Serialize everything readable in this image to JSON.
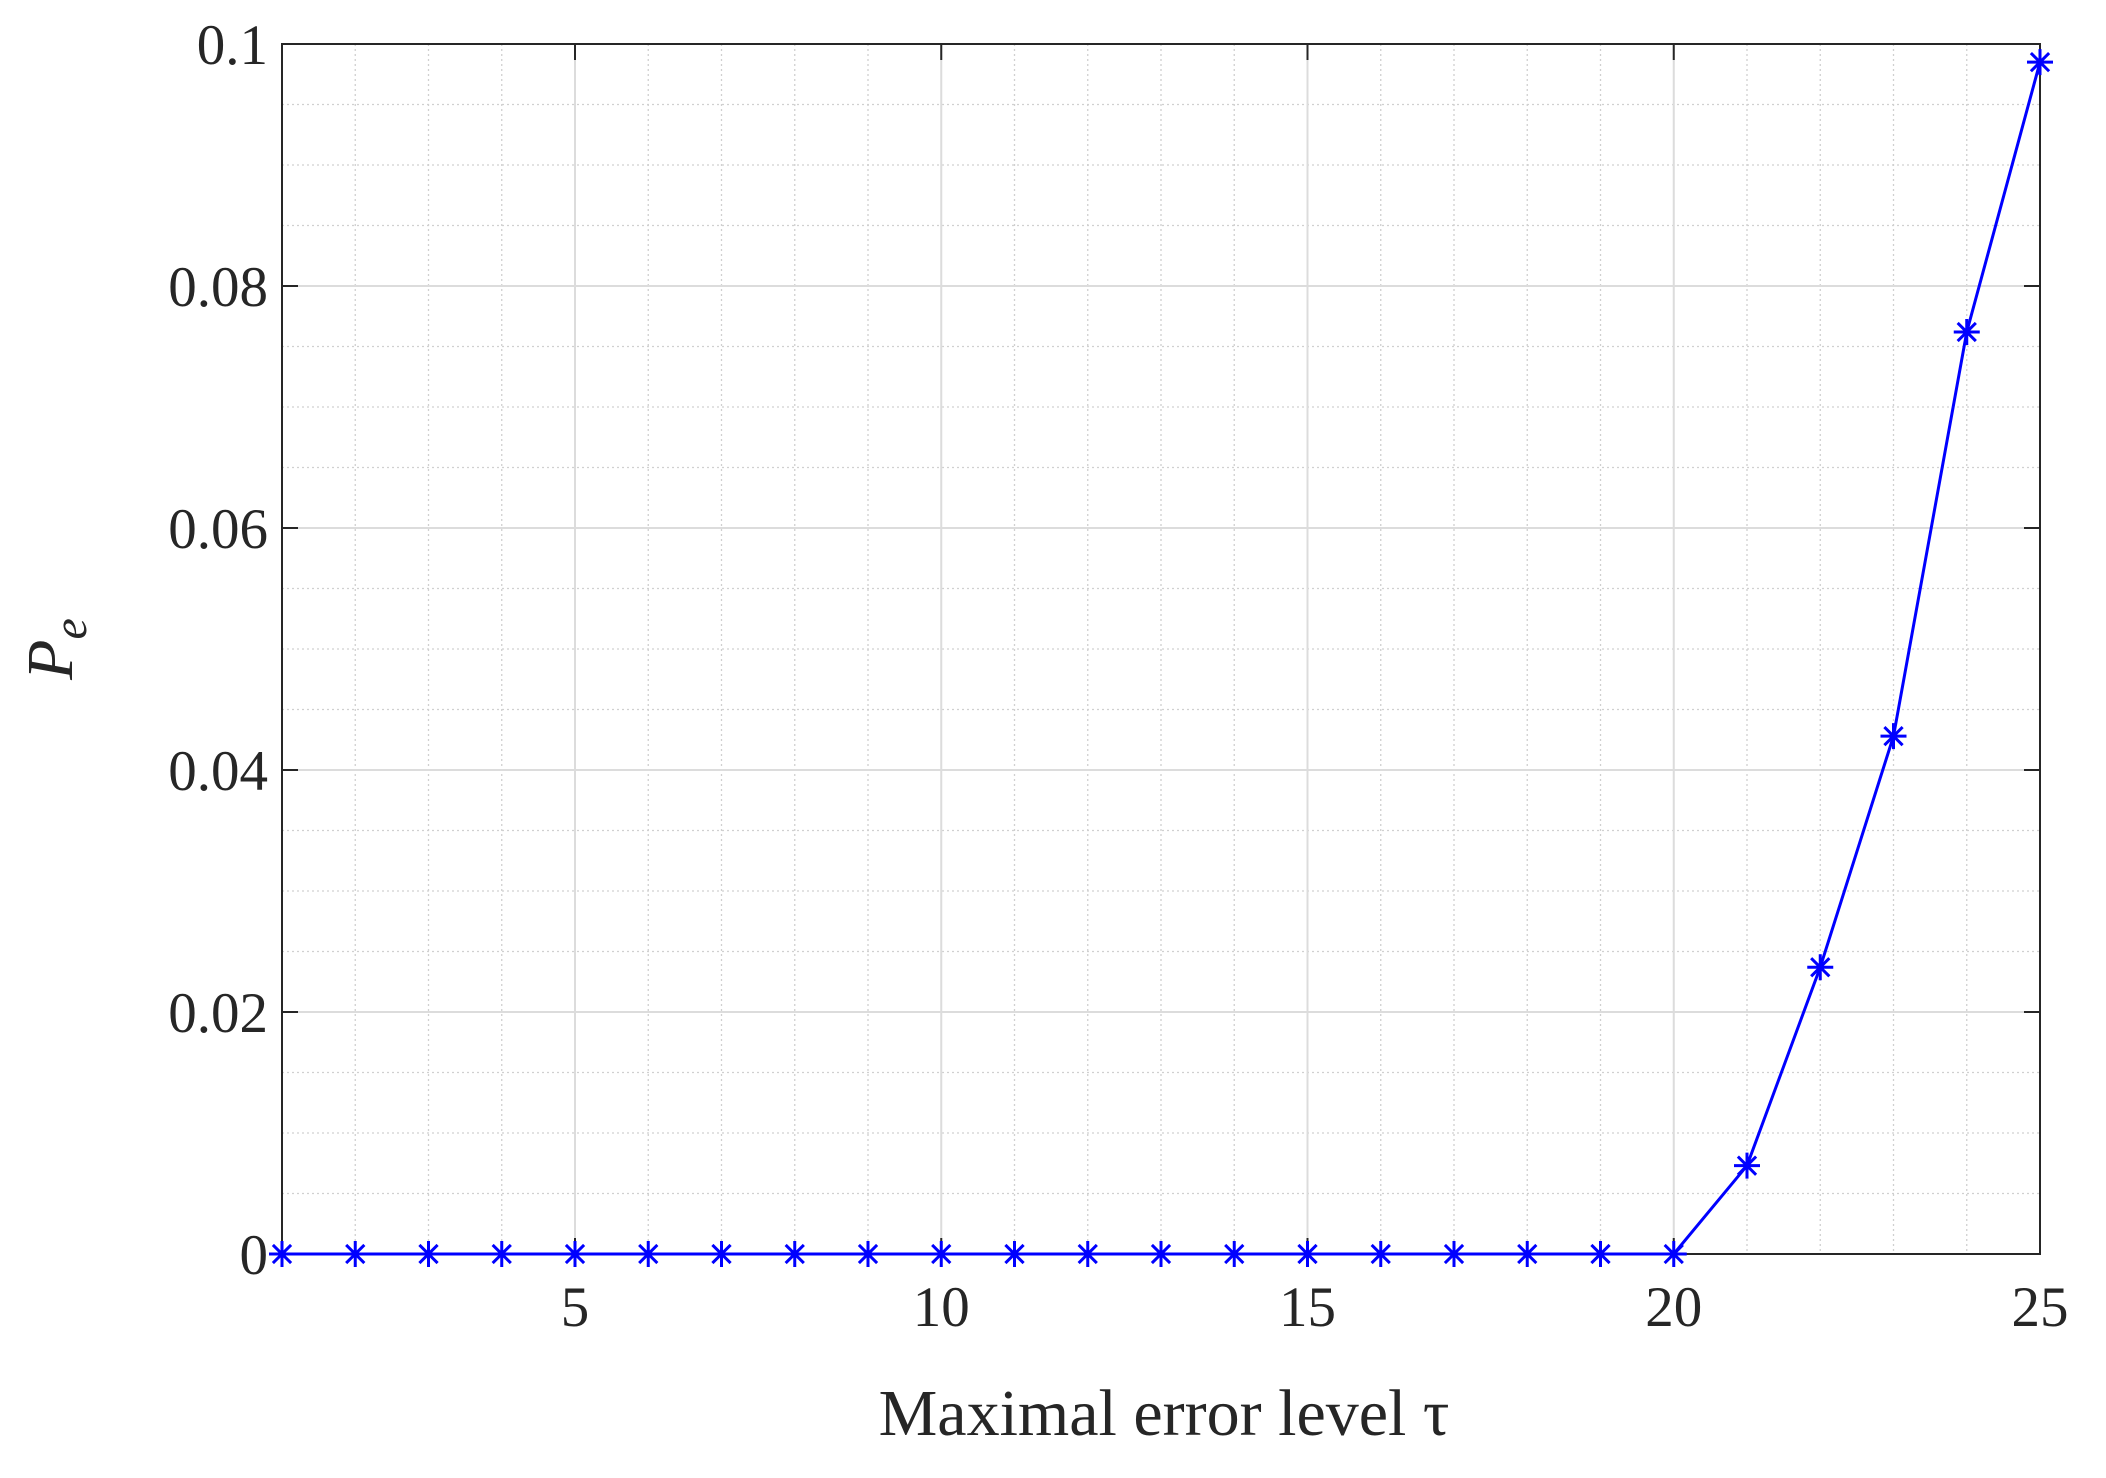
{
  "chart_data": {
    "type": "line",
    "xlabel": "Maximal error level τ",
    "ylabel": {
      "text": "P",
      "subscript": "e"
    },
    "x": [
      1,
      2,
      3,
      4,
      5,
      6,
      7,
      8,
      9,
      10,
      11,
      12,
      13,
      14,
      15,
      16,
      17,
      18,
      19,
      20,
      21,
      22,
      23,
      24,
      25
    ],
    "series": [
      {
        "color": "#0000ff",
        "marker": "asterisk",
        "values": [
          0,
          0,
          0,
          0,
          0,
          0,
          0,
          0,
          0,
          0,
          0,
          0,
          0,
          0,
          0,
          0,
          0,
          0,
          0,
          0,
          0.0073,
          0.0237,
          0.0428,
          0.0762,
          0.0985
        ]
      }
    ],
    "xlim": [
      1,
      25
    ],
    "xticks": [
      5,
      10,
      15,
      20,
      25
    ],
    "ylim": [
      0,
      0.1
    ],
    "yticks": [
      0,
      0.02,
      0.04,
      0.06,
      0.08,
      0.1
    ],
    "grid": true,
    "minor_grid": true
  }
}
